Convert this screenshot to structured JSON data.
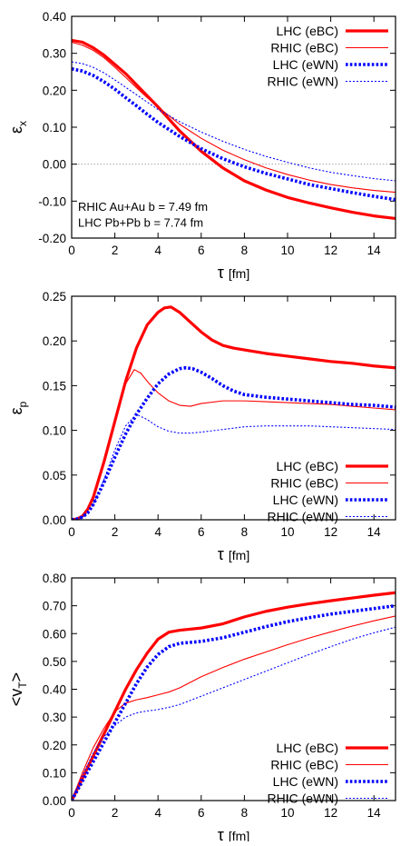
{
  "chart_data": [
    {
      "type": "line",
      "xlabel": "τ [fm]",
      "ylabel": "εx",
      "ylabel_main": "ε",
      "ylabel_sub": "x",
      "xlim": [
        0,
        15
      ],
      "ylim": [
        -0.2,
        0.4
      ],
      "xticks": [
        "0",
        "2",
        "4",
        "6",
        "8",
        "10",
        "12",
        "14"
      ],
      "xtick_values": [
        0,
        2,
        4,
        6,
        8,
        10,
        12,
        14
      ],
      "yticks": [
        "-0.20",
        "-0.10",
        "0.00",
        "0.10",
        "0.20",
        "0.30",
        "0.40"
      ],
      "ytick_values": [
        -0.2,
        -0.1,
        0.0,
        0.1,
        0.2,
        0.3,
        0.4
      ],
      "zero_line": true,
      "legend_position": "top-right",
      "annotations": [
        "RHIC Au+Au  b = 7.49 fm",
        "LHC Pb+Pb  b = 7.74 fm"
      ],
      "series": [
        {
          "name": "LHC (eBC)",
          "color": "#ff0000",
          "style": "thick-solid",
          "x": [
            0,
            0.5,
            1,
            1.5,
            2,
            2.5,
            3,
            3.5,
            4,
            5,
            6,
            7,
            8,
            9,
            10,
            11,
            12,
            13,
            14,
            15
          ],
          "y": [
            0.335,
            0.33,
            0.315,
            0.295,
            0.27,
            0.245,
            0.215,
            0.185,
            0.155,
            0.09,
            0.035,
            -0.01,
            -0.045,
            -0.07,
            -0.09,
            -0.105,
            -0.118,
            -0.13,
            -0.14,
            -0.147
          ]
        },
        {
          "name": "RHIC (eBC)",
          "color": "#ff0000",
          "style": "thin-solid",
          "x": [
            0,
            0.5,
            1,
            1.5,
            2,
            2.5,
            3,
            3.5,
            4,
            5,
            6,
            7,
            8,
            9,
            10,
            11,
            12,
            13,
            14,
            15
          ],
          "y": [
            0.33,
            0.322,
            0.308,
            0.288,
            0.262,
            0.235,
            0.207,
            0.18,
            0.155,
            0.108,
            0.07,
            0.038,
            0.012,
            -0.01,
            -0.028,
            -0.043,
            -0.055,
            -0.064,
            -0.071,
            -0.076
          ]
        },
        {
          "name": "LHC (eWN)",
          "color": "#0000ff",
          "style": "thick-dotted",
          "x": [
            0,
            0.5,
            1,
            1.5,
            2,
            2.5,
            3,
            3.5,
            4,
            5,
            6,
            7,
            8,
            9,
            10,
            11,
            12,
            13,
            14,
            15
          ],
          "y": [
            0.258,
            0.252,
            0.24,
            0.223,
            0.203,
            0.18,
            0.158,
            0.135,
            0.113,
            0.075,
            0.042,
            0.015,
            -0.007,
            -0.025,
            -0.04,
            -0.055,
            -0.066,
            -0.077,
            -0.087,
            -0.096
          ]
        },
        {
          "name": "RHIC (eWN)",
          "color": "#0000ff",
          "style": "thin-dotted",
          "x": [
            0,
            0.5,
            1,
            1.5,
            2,
            2.5,
            3,
            3.5,
            4,
            5,
            6,
            7,
            8,
            9,
            10,
            11,
            12,
            13,
            14,
            15
          ],
          "y": [
            0.277,
            0.272,
            0.262,
            0.247,
            0.228,
            0.208,
            0.188,
            0.168,
            0.148,
            0.115,
            0.087,
            0.062,
            0.04,
            0.021,
            0.005,
            -0.01,
            -0.022,
            -0.031,
            -0.039,
            -0.045
          ]
        }
      ]
    },
    {
      "type": "line",
      "xlabel": "τ [fm]",
      "ylabel": "εp",
      "ylabel_main": "ε",
      "ylabel_sub": "p",
      "xlim": [
        0,
        15
      ],
      "ylim": [
        0.0,
        0.25
      ],
      "xticks": [
        "0",
        "2",
        "4",
        "6",
        "8",
        "10",
        "12",
        "14"
      ],
      "xtick_values": [
        0,
        2,
        4,
        6,
        8,
        10,
        12,
        14
      ],
      "yticks": [
        "0.00",
        "0.05",
        "0.10",
        "0.15",
        "0.20",
        "0.25"
      ],
      "ytick_values": [
        0.0,
        0.05,
        0.1,
        0.15,
        0.2,
        0.25
      ],
      "zero_line": false,
      "legend_position": "bottom-right",
      "annotations": [],
      "series": [
        {
          "name": "LHC (eBC)",
          "color": "#ff0000",
          "style": "thick-solid",
          "x": [
            0,
            0.25,
            0.5,
            0.75,
            1,
            1.5,
            2,
            2.5,
            3,
            3.5,
            4,
            4.3,
            4.6,
            5,
            5.5,
            6,
            6.5,
            7,
            7.5,
            8,
            9,
            10,
            11,
            12,
            13,
            14,
            15
          ],
          "y": [
            0,
            0.001,
            0.004,
            0.012,
            0.025,
            0.065,
            0.11,
            0.155,
            0.192,
            0.218,
            0.232,
            0.237,
            0.238,
            0.232,
            0.221,
            0.21,
            0.201,
            0.195,
            0.192,
            0.19,
            0.186,
            0.183,
            0.18,
            0.177,
            0.175,
            0.172,
            0.17
          ]
        },
        {
          "name": "RHIC (eBC)",
          "color": "#ff0000",
          "style": "thin-solid",
          "x": [
            0,
            0.25,
            0.5,
            0.75,
            1,
            1.5,
            2,
            2.5,
            2.9,
            3.2,
            3.6,
            4,
            4.5,
            5,
            5.5,
            6,
            7,
            8,
            9,
            10,
            11,
            12,
            13,
            14,
            15
          ],
          "y": [
            0,
            0.001,
            0.004,
            0.012,
            0.025,
            0.065,
            0.11,
            0.152,
            0.168,
            0.164,
            0.152,
            0.142,
            0.133,
            0.128,
            0.127,
            0.13,
            0.133,
            0.133,
            0.132,
            0.131,
            0.13,
            0.129,
            0.127,
            0.125,
            0.123
          ]
        },
        {
          "name": "LHC (eWN)",
          "color": "#0000ff",
          "style": "thick-dotted",
          "x": [
            0,
            0.25,
            0.5,
            0.75,
            1,
            1.5,
            2,
            2.5,
            3,
            3.5,
            4,
            4.5,
            5,
            5.3,
            5.6,
            6,
            6.5,
            7,
            7.5,
            8,
            9,
            10,
            11,
            12,
            13,
            14,
            15
          ],
          "y": [
            0,
            0.001,
            0.003,
            0.008,
            0.017,
            0.042,
            0.07,
            0.096,
            0.118,
            0.136,
            0.152,
            0.163,
            0.169,
            0.17,
            0.169,
            0.165,
            0.158,
            0.15,
            0.144,
            0.14,
            0.137,
            0.135,
            0.133,
            0.131,
            0.129,
            0.128,
            0.126
          ]
        },
        {
          "name": "RHIC (eWN)",
          "color": "#0000ff",
          "style": "thin-dotted",
          "x": [
            0,
            0.25,
            0.5,
            0.75,
            1,
            1.5,
            2,
            2.5,
            3,
            3.5,
            4,
            4.5,
            5,
            5.5,
            6,
            7,
            8,
            9,
            10,
            11,
            12,
            13,
            14,
            15
          ],
          "y": [
            0,
            0.001,
            0.003,
            0.008,
            0.017,
            0.045,
            0.078,
            0.105,
            0.118,
            0.112,
            0.104,
            0.099,
            0.097,
            0.097,
            0.098,
            0.101,
            0.104,
            0.105,
            0.105,
            0.105,
            0.104,
            0.103,
            0.102,
            0.101
          ]
        }
      ]
    },
    {
      "type": "line",
      "xlabel": "τ [fm]",
      "ylabel": "<vT>",
      "ylabel_main": "<v",
      "ylabel_sub": "T",
      "ylabel_tail": ">",
      "xlim": [
        0,
        15
      ],
      "ylim": [
        0.0,
        0.8
      ],
      "xticks": [
        "0",
        "2",
        "4",
        "6",
        "8",
        "10",
        "12",
        "14"
      ],
      "xtick_values": [
        0,
        2,
        4,
        6,
        8,
        10,
        12,
        14
      ],
      "yticks": [
        "0.00",
        "0.10",
        "0.20",
        "0.30",
        "0.40",
        "0.50",
        "0.60",
        "0.70",
        "0.80"
      ],
      "ytick_values": [
        0.0,
        0.1,
        0.2,
        0.3,
        0.4,
        0.5,
        0.6,
        0.7,
        0.8
      ],
      "zero_line": false,
      "legend_position": "bottom-right",
      "annotations": [],
      "series": [
        {
          "name": "LHC (eBC)",
          "color": "#ff0000",
          "style": "thick-solid",
          "x": [
            0,
            0.25,
            0.5,
            1,
            1.5,
            2,
            2.5,
            3,
            3.5,
            4,
            4.5,
            5,
            6,
            7,
            8,
            9,
            10,
            11,
            12,
            13,
            14,
            15
          ],
          "y": [
            0,
            0.04,
            0.08,
            0.16,
            0.24,
            0.32,
            0.4,
            0.47,
            0.53,
            0.58,
            0.605,
            0.612,
            0.62,
            0.635,
            0.66,
            0.68,
            0.695,
            0.707,
            0.718,
            0.728,
            0.738,
            0.747
          ]
        },
        {
          "name": "RHIC (eBC)",
          "color": "#ff0000",
          "style": "thin-solid",
          "x": [
            0,
            0.25,
            0.5,
            1,
            1.5,
            2,
            2.5,
            3,
            3.5,
            4,
            4.5,
            5,
            5.5,
            6,
            7,
            8,
            9,
            10,
            11,
            12,
            13,
            14,
            15
          ],
          "y": [
            0,
            0.05,
            0.1,
            0.19,
            0.26,
            0.32,
            0.35,
            0.362,
            0.37,
            0.38,
            0.39,
            0.405,
            0.425,
            0.445,
            0.478,
            0.508,
            0.534,
            0.56,
            0.584,
            0.606,
            0.627,
            0.646,
            0.663
          ]
        },
        {
          "name": "LHC (eWN)",
          "color": "#0000ff",
          "style": "thick-dotted",
          "x": [
            0,
            0.25,
            0.5,
            1,
            1.5,
            2,
            2.5,
            3,
            3.5,
            4,
            4.5,
            5,
            6,
            7,
            8,
            9,
            10,
            11,
            12,
            13,
            14,
            15
          ],
          "y": [
            0,
            0.035,
            0.07,
            0.14,
            0.21,
            0.28,
            0.35,
            0.42,
            0.48,
            0.525,
            0.553,
            0.565,
            0.572,
            0.585,
            0.605,
            0.625,
            0.643,
            0.657,
            0.67,
            0.68,
            0.69,
            0.7
          ]
        },
        {
          "name": "RHIC (eWN)",
          "color": "#0000ff",
          "style": "thin-dotted",
          "x": [
            0,
            0.25,
            0.5,
            1,
            1.5,
            2,
            2.5,
            3,
            3.5,
            4,
            4.5,
            5,
            5.5,
            6,
            7,
            8,
            9,
            10,
            11,
            12,
            13,
            14,
            15
          ],
          "y": [
            0,
            0.045,
            0.09,
            0.17,
            0.23,
            0.27,
            0.3,
            0.315,
            0.322,
            0.327,
            0.335,
            0.345,
            0.36,
            0.375,
            0.405,
            0.435,
            0.465,
            0.495,
            0.525,
            0.553,
            0.58,
            0.603,
            0.623
          ]
        }
      ]
    }
  ]
}
